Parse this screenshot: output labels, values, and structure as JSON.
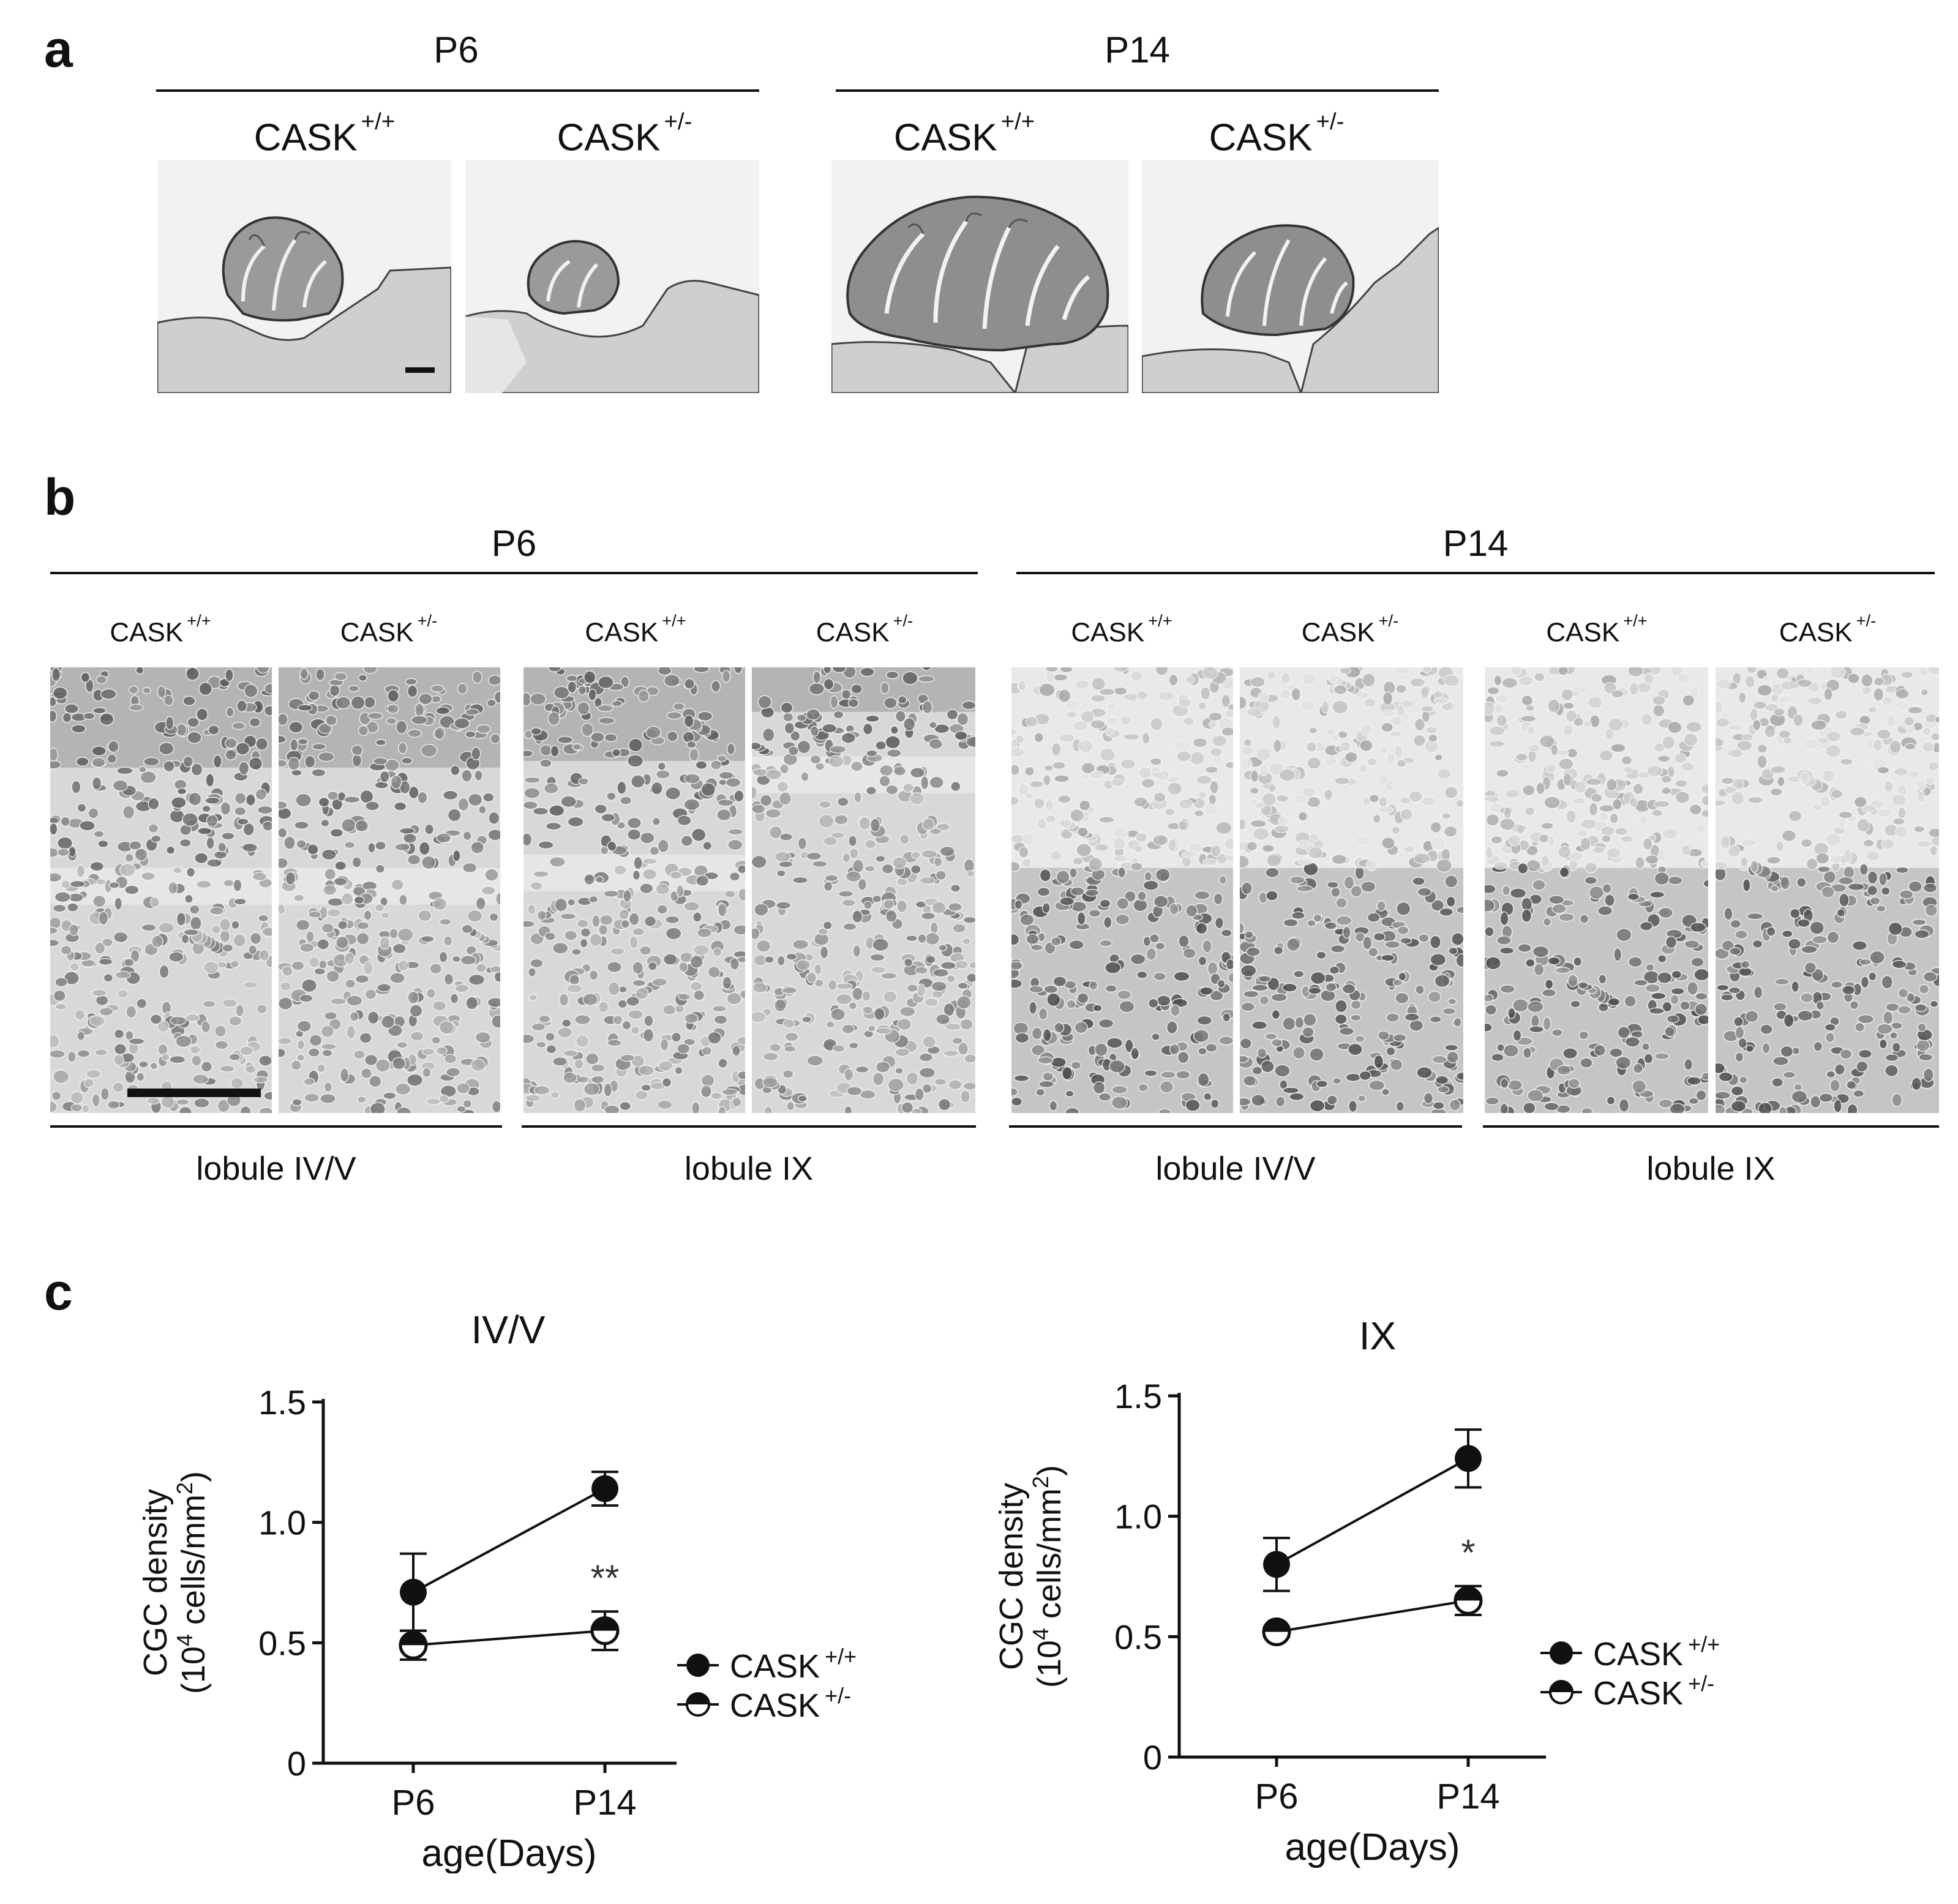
{
  "panels": {
    "a": {
      "letter": "a",
      "groups": [
        {
          "header": "P6",
          "genotypes": [
            {
              "name": "CASK",
              "sup": "+/+"
            },
            {
              "name": "CASK",
              "sup": "+/-"
            }
          ]
        },
        {
          "header": "P14",
          "genotypes": [
            {
              "name": "CASK",
              "sup": "+/+"
            },
            {
              "name": "CASK",
              "sup": "+/-"
            }
          ]
        }
      ]
    },
    "b": {
      "letter": "b",
      "groups": [
        {
          "header": "P6",
          "genotypes": [
            {
              "name": "CASK",
              "sup": "+/+"
            },
            {
              "name": "CASK",
              "sup": "+/-"
            },
            {
              "name": "CASK",
              "sup": "+/+"
            },
            {
              "name": "CASK",
              "sup": "+/-"
            }
          ],
          "lobules": [
            "lobule IV/V",
            "lobule IX"
          ]
        },
        {
          "header": "P14",
          "genotypes": [
            {
              "name": "CASK",
              "sup": "+/+"
            },
            {
              "name": "CASK",
              "sup": "+/-"
            },
            {
              "name": "CASK",
              "sup": "+/+"
            },
            {
              "name": "CASK",
              "sup": "+/-"
            }
          ],
          "lobules": [
            "lobule IV/V",
            "lobule IX"
          ]
        }
      ]
    },
    "c": {
      "letter": "c"
    }
  },
  "chart_data": [
    {
      "type": "line",
      "title": "IV/V",
      "xlabel": "age(Days)",
      "ylabel_line1": "CGC density",
      "ylabel_line2_pre": "(10",
      "ylabel_line2_sup": "4",
      "ylabel_line2_mid": " cells/mm",
      "ylabel_line2_sup2": "2",
      "ylabel_line2_post": ")",
      "categories": [
        "P6",
        "P14"
      ],
      "ylim": [
        0,
        1.5
      ],
      "yticks": [
        "0",
        "0.5",
        "1.0",
        "1.5"
      ],
      "series": [
        {
          "name": "CASK",
          "sup": "+/+",
          "marker": "filled",
          "values": [
            0.71,
            1.14
          ],
          "errors": [
            0.16,
            0.07
          ]
        },
        {
          "name": "CASK",
          "sup": "+/-",
          "marker": "half",
          "values": [
            0.49,
            0.55
          ],
          "errors": [
            0.06,
            0.08
          ]
        }
      ],
      "significance": {
        "category": "P14",
        "label": "**"
      },
      "legend_position": "right"
    },
    {
      "type": "line",
      "title": "IX",
      "xlabel": "age(Days)",
      "ylabel_line1": "CGC density",
      "ylabel_line2_pre": "(10",
      "ylabel_line2_sup": "4",
      "ylabel_line2_mid": " cells/mm",
      "ylabel_line2_sup2": "2",
      "ylabel_line2_post": ")",
      "categories": [
        "P6",
        "P14"
      ],
      "ylim": [
        0,
        1.5
      ],
      "yticks": [
        "0",
        "0.5",
        "1.0",
        "1.5"
      ],
      "series": [
        {
          "name": "CASK",
          "sup": "+/+",
          "marker": "filled",
          "values": [
            0.8,
            1.24
          ],
          "errors": [
            0.11,
            0.12
          ]
        },
        {
          "name": "CASK",
          "sup": "+/-",
          "marker": "half",
          "values": [
            0.52,
            0.65
          ],
          "errors": [
            0.02,
            0.06
          ]
        }
      ],
      "significance": {
        "category": "P14",
        "label": "*"
      },
      "legend_position": "right"
    }
  ]
}
